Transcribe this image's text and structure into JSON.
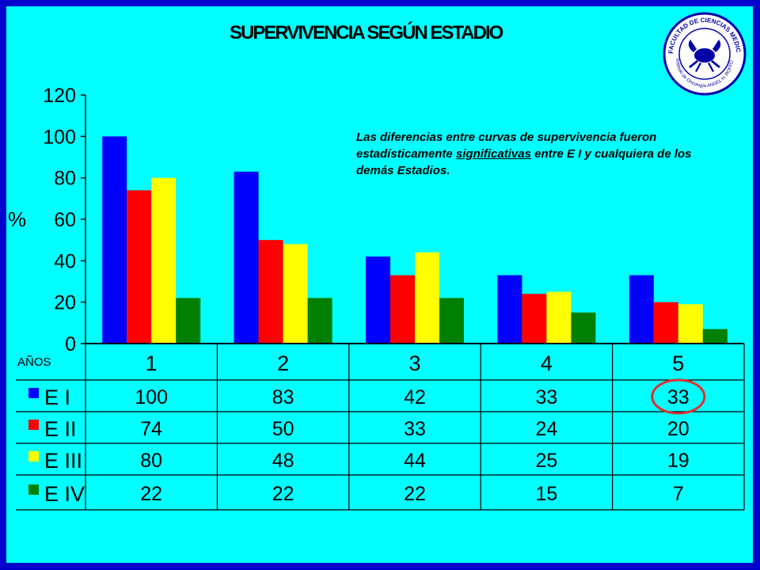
{
  "title": "SUPERVIVENCIA SEGÚN ESTADIO",
  "note": {
    "part1": "Las diferencias entre curvas de supervivencia fueron estadísticamente ",
    "underlined": "significativas",
    "part2": " entre E I y cualquiera de los demás Estadios."
  },
  "seal": {
    "text_top": "FACULTAD DE CIENCIAS MEDICAS",
    "text_bottom": "Instituto de Oncología ANGEL H. ROFFO"
  },
  "table": {
    "row_header": "AÑOS"
  },
  "colors": {
    "background": "#00ffff",
    "frame": "#0000cc",
    "highlight_circle": "#e03030"
  },
  "chart_data": {
    "type": "bar",
    "title": "SUPERVIVENCIA SEGÚN ESTADIO",
    "xlabel": "AÑOS",
    "ylabel": "%",
    "ylim": [
      0,
      120
    ],
    "yticks": [
      0,
      20,
      40,
      60,
      80,
      100,
      120
    ],
    "grid": false,
    "categories": [
      "1",
      "2",
      "3",
      "4",
      "5"
    ],
    "series": [
      {
        "name": "E I",
        "color": "#0000ff",
        "values": [
          100,
          83,
          42,
          33,
          33
        ]
      },
      {
        "name": "E II",
        "color": "#ff0000",
        "values": [
          74,
          50,
          33,
          24,
          20
        ]
      },
      {
        "name": "E III",
        "color": "#ffff00",
        "values": [
          80,
          48,
          44,
          25,
          19
        ]
      },
      {
        "name": "E IV",
        "color": "#008000",
        "values": [
          22,
          22,
          22,
          15,
          7
        ]
      }
    ],
    "highlighted_cell": {
      "series": "E I",
      "category": "5",
      "value": 33
    }
  }
}
